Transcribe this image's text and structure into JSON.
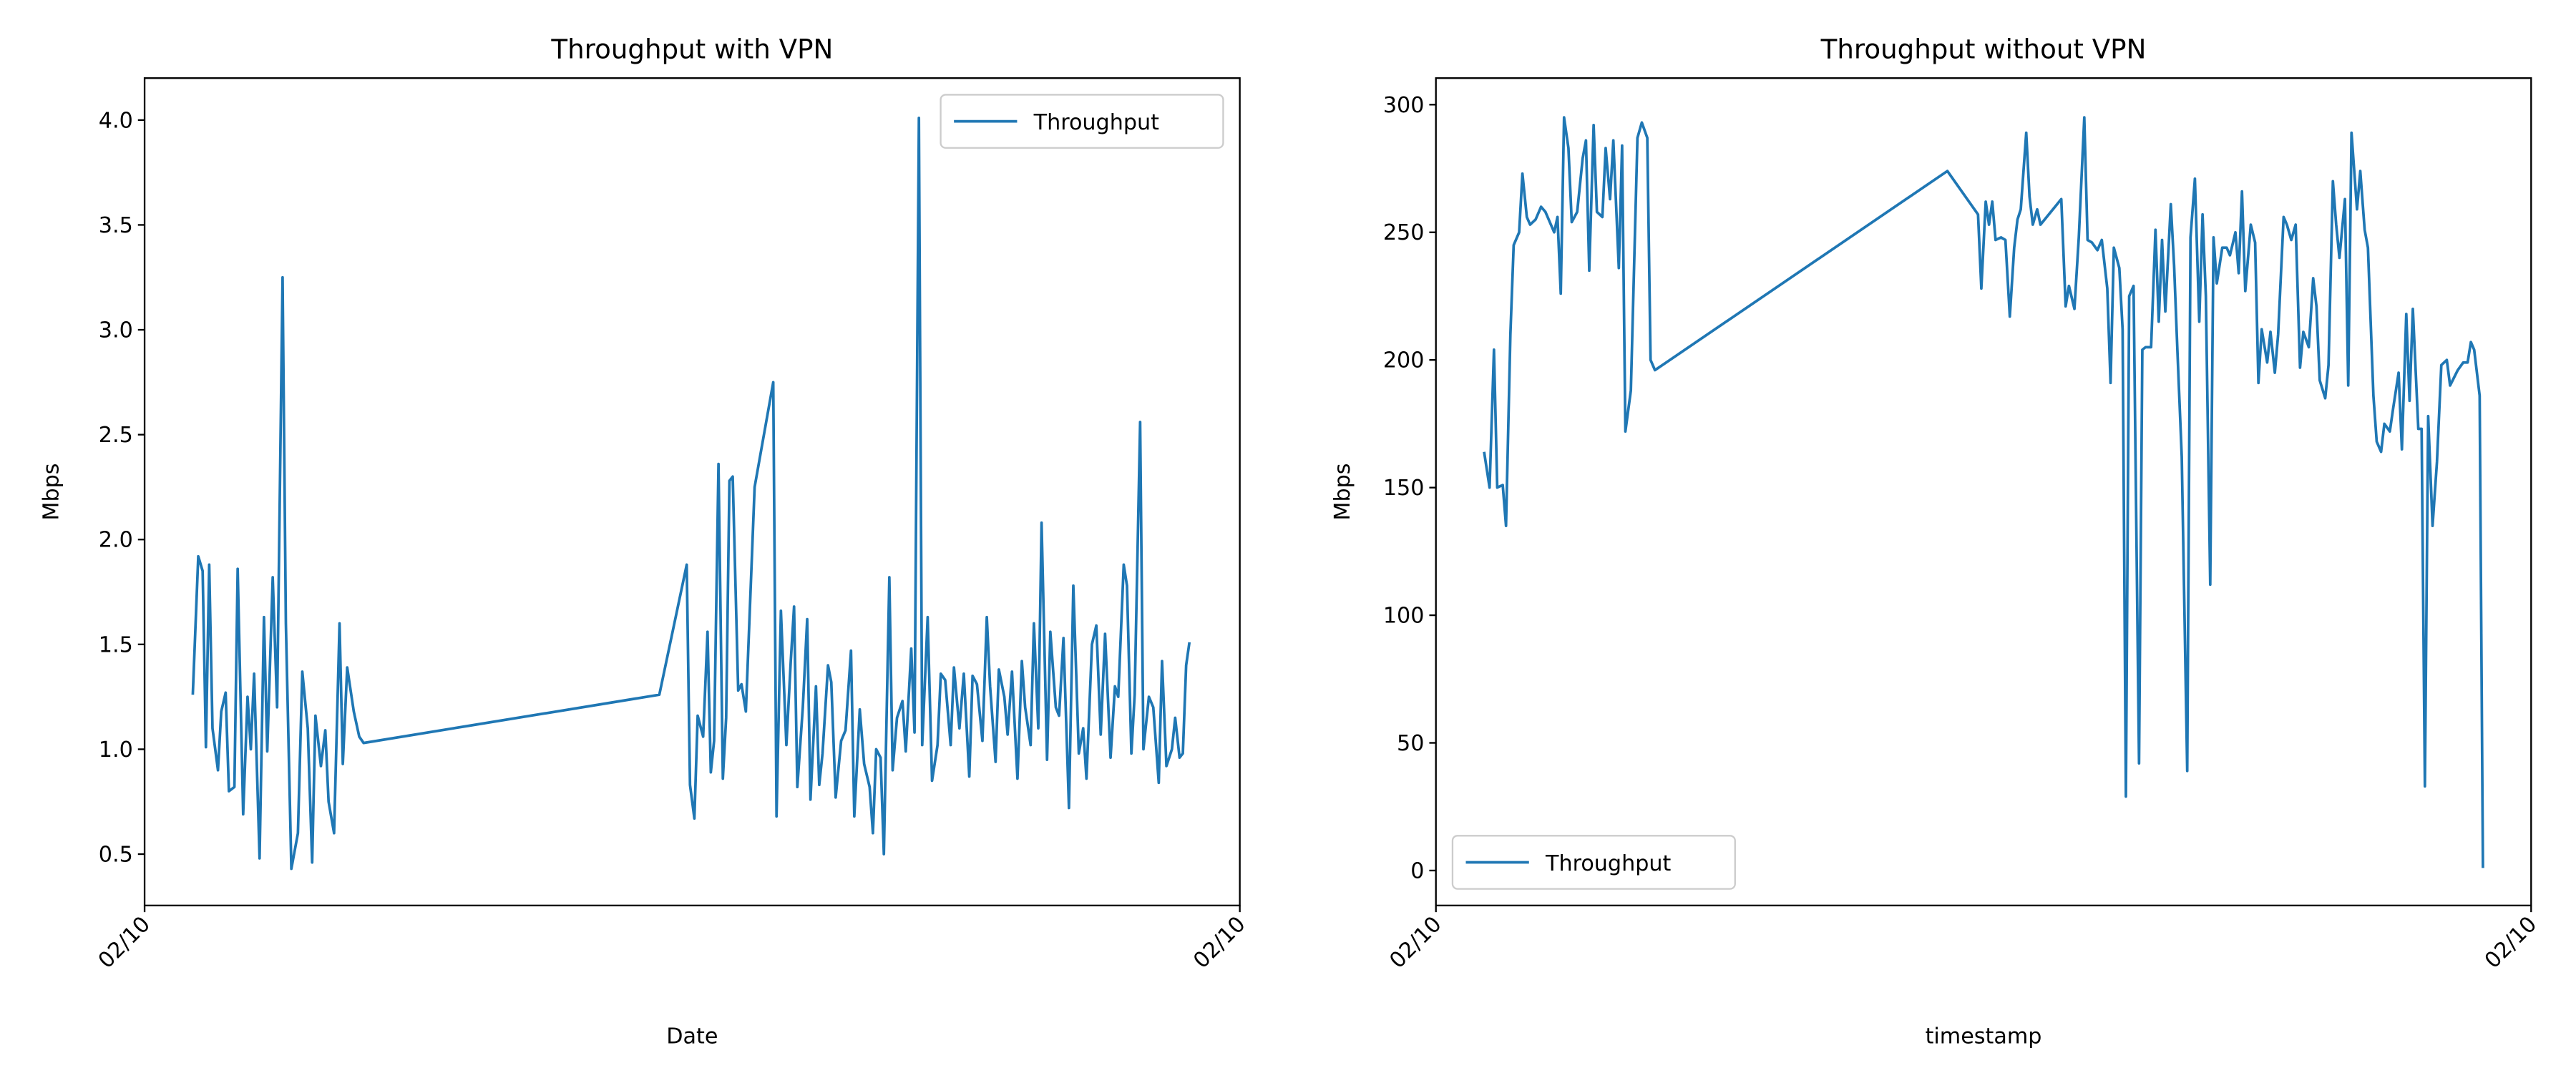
{
  "chart_data": [
    {
      "type": "line",
      "title": "Throughput with VPN",
      "xlabel": "Date",
      "ylabel": "Mbps",
      "xlim": [
        0,
        1
      ],
      "xticks": [
        {
          "value": 0,
          "label": "02/10"
        },
        {
          "value": 1,
          "label": "02/10"
        }
      ],
      "ylim": [
        0.255,
        4.2
      ],
      "yticks": [
        0.5,
        {
          "value": 1.0,
          "label": "1.0"
        },
        1.5,
        {
          "value": 2.0,
          "label": "2.0"
        },
        2.5,
        {
          "value": 3.0,
          "label": "3.0"
        },
        3.5,
        {
          "value": 4.0,
          "label": "4.0"
        }
      ],
      "legend": "upper right",
      "x": [
        0.044,
        0.049,
        0.053,
        0.056,
        0.059,
        0.062,
        0.067,
        0.07,
        0.074,
        0.077,
        0.082,
        0.085,
        0.09,
        0.094,
        0.097,
        0.1,
        0.105,
        0.109,
        0.112,
        0.117,
        0.121,
        0.126,
        0.129,
        0.134,
        0.14,
        0.144,
        0.149,
        0.153,
        0.156,
        0.161,
        0.165,
        0.168,
        0.173,
        0.178,
        0.181,
        0.185,
        0.191,
        0.196,
        0.2,
        0.47,
        0.495,
        0.498,
        0.502,
        0.505,
        0.51,
        0.514,
        0.517,
        0.52,
        0.524,
        0.528,
        0.531,
        0.534,
        0.537,
        0.542,
        0.545,
        0.549,
        0.557,
        0.574,
        0.577,
        0.581,
        0.586,
        0.59,
        0.593,
        0.596,
        0.601,
        0.605,
        0.608,
        0.613,
        0.616,
        0.619,
        0.624,
        0.627,
        0.631,
        0.636,
        0.64,
        0.645,
        0.648,
        0.653,
        0.657,
        0.662,
        0.665,
        0.668,
        0.672,
        0.675,
        0.68,
        0.683,
        0.687,
        0.692,
        0.695,
        0.7,
        0.703,
        0.707,
        0.71,
        0.715,
        0.719,
        0.724,
        0.727,
        0.731,
        0.736,
        0.739,
        0.744,
        0.748,
        0.753,
        0.756,
        0.76,
        0.765,
        0.769,
        0.772,
        0.777,
        0.78,
        0.785,
        0.788,
        0.792,
        0.797,
        0.801,
        0.804,
        0.809,
        0.812,
        0.816,
        0.819,
        0.824,
        0.827,
        0.832,
        0.835,
        0.839,
        0.844,
        0.848,
        0.853,
        0.857,
        0.86,
        0.865,
        0.869,
        0.873,
        0.877,
        0.882,
        0.886,
        0.889,
        0.894,
        0.897,
        0.901,
        0.904,
        0.909,
        0.912,
        0.917,
        0.921,
        0.926,
        0.929,
        0.933,
        0.938,
        0.941,
        0.945,
        0.948,
        0.951,
        0.954
      ],
      "series": [
        {
          "name": "Throughput",
          "color": "#1f77b4",
          "values": [
            1.26,
            1.92,
            1.85,
            1.01,
            1.88,
            1.1,
            0.9,
            1.18,
            1.27,
            0.8,
            0.82,
            1.86,
            0.69,
            1.25,
            1.0,
            1.36,
            0.48,
            1.63,
            0.99,
            1.82,
            1.2,
            3.25,
            1.6,
            0.43,
            0.6,
            1.37,
            1.1,
            0.46,
            1.16,
            0.92,
            1.09,
            0.75,
            0.6,
            1.6,
            0.93,
            1.39,
            1.18,
            1.06,
            1.03,
            1.26,
            1.88,
            0.83,
            0.67,
            1.16,
            1.06,
            1.56,
            0.89,
            1.04,
            2.36,
            0.86,
            1.15,
            2.28,
            2.3,
            1.28,
            1.31,
            1.18,
            2.25,
            2.75,
            0.68,
            1.66,
            1.02,
            1.42,
            1.68,
            0.82,
            1.2,
            1.62,
            0.76,
            1.3,
            0.83,
            0.98,
            1.4,
            1.32,
            0.77,
            1.04,
            1.09,
            1.47,
            0.68,
            1.19,
            0.93,
            0.82,
            0.6,
            1.0,
            0.96,
            0.5,
            1.82,
            0.9,
            1.15,
            1.23,
            0.99,
            1.48,
            1.08,
            4.01,
            1.02,
            1.63,
            0.85,
            1.02,
            1.36,
            1.33,
            1.02,
            1.39,
            1.1,
            1.36,
            0.87,
            1.35,
            1.31,
            1.04,
            1.63,
            1.3,
            0.94,
            1.38,
            1.25,
            1.07,
            1.37,
            0.86,
            1.42,
            1.2,
            1.02,
            1.6,
            1.1,
            2.08,
            0.95,
            1.56,
            1.2,
            1.16,
            1.53,
            0.72,
            1.78,
            0.98,
            1.1,
            0.86,
            1.5,
            1.59,
            1.07,
            1.55,
            0.96,
            1.3,
            1.25,
            1.88,
            1.78,
            0.98,
            1.26,
            2.56,
            1.0,
            1.25,
            1.2,
            0.84,
            1.42,
            0.92,
            1.0,
            1.15,
            0.96,
            0.98,
            1.4,
            1.51
          ]
        }
      ]
    },
    {
      "type": "line",
      "title": "Throughput without VPN",
      "xlabel": "timestamp",
      "ylabel": "Mbps",
      "xlim": [
        0,
        1
      ],
      "xticks": [
        {
          "value": 0,
          "label": "02/10"
        },
        {
          "value": 1,
          "label": "02/10"
        }
      ],
      "ylim": [
        -13.7,
        310.4
      ],
      "yticks": [
        0,
        50,
        100,
        150,
        200,
        250,
        300
      ],
      "legend": "lower left",
      "x": [
        0.044,
        0.049,
        0.053,
        0.056,
        0.061,
        0.064,
        0.068,
        0.071,
        0.076,
        0.079,
        0.083,
        0.086,
        0.091,
        0.096,
        0.1,
        0.105,
        0.108,
        0.111,
        0.114,
        0.117,
        0.121,
        0.124,
        0.129,
        0.134,
        0.137,
        0.14,
        0.144,
        0.147,
        0.152,
        0.155,
        0.159,
        0.162,
        0.167,
        0.17,
        0.173,
        0.178,
        0.184,
        0.188,
        0.193,
        0.196,
        0.2,
        0.467,
        0.495,
        0.498,
        0.502,
        0.505,
        0.508,
        0.511,
        0.516,
        0.52,
        0.524,
        0.528,
        0.531,
        0.534,
        0.539,
        0.542,
        0.545,
        0.549,
        0.552,
        0.571,
        0.575,
        0.578,
        0.583,
        0.587,
        0.592,
        0.595,
        0.599,
        0.604,
        0.608,
        0.613,
        0.616,
        0.619,
        0.624,
        0.627,
        0.63,
        0.633,
        0.637,
        0.642,
        0.645,
        0.648,
        0.653,
        0.657,
        0.66,
        0.663,
        0.666,
        0.671,
        0.674,
        0.677,
        0.681,
        0.686,
        0.689,
        0.693,
        0.697,
        0.7,
        0.703,
        0.707,
        0.71,
        0.713,
        0.718,
        0.722,
        0.725,
        0.73,
        0.733,
        0.736,
        0.739,
        0.744,
        0.748,
        0.751,
        0.754,
        0.759,
        0.762,
        0.766,
        0.769,
        0.774,
        0.777,
        0.781,
        0.785,
        0.789,
        0.792,
        0.797,
        0.801,
        0.804,
        0.807,
        0.812,
        0.815,
        0.819,
        0.822,
        0.825,
        0.83,
        0.833,
        0.836,
        0.841,
        0.844,
        0.848,
        0.851,
        0.856,
        0.859,
        0.863,
        0.866,
        0.871,
        0.874,
        0.879,
        0.882,
        0.886,
        0.889,
        0.892,
        0.897,
        0.9,
        0.903,
        0.906,
        0.91,
        0.914,
        0.918,
        0.923,
        0.926,
        0.933,
        0.938,
        0.942,
        0.945,
        0.948,
        0.953,
        0.956
      ],
      "series": [
        {
          "name": "Throughput",
          "color": "#1f77b4",
          "values": [
            164,
            150,
            204,
            150,
            151,
            135,
            210,
            245,
            250,
            273,
            256,
            253,
            255,
            260,
            258,
            253,
            250,
            256,
            226,
            295,
            283,
            254,
            258,
            279,
            286,
            235,
            292,
            258,
            256,
            283,
            263,
            286,
            236,
            284,
            172,
            188,
            287,
            293,
            287,
            200,
            196,
            274,
            257,
            228,
            262,
            253,
            262,
            247,
            248,
            247,
            217,
            244,
            255,
            259,
            289,
            264,
            253,
            259,
            253,
            263,
            221,
            229,
            220,
            248,
            295,
            247,
            246,
            243,
            247,
            228,
            191,
            244,
            236,
            212,
            29,
            225,
            229,
            42,
            204,
            205,
            205,
            251,
            215,
            247,
            219,
            261,
            237,
            204,
            162,
            39,
            248,
            271,
            215,
            257,
            225,
            112,
            248,
            230,
            244,
            244,
            241,
            250,
            234,
            266,
            227,
            253,
            246,
            191,
            212,
            199,
            211,
            195,
            210,
            256,
            253,
            247,
            253,
            197,
            211,
            205,
            232,
            221,
            192,
            185,
            198,
            270,
            253,
            240,
            263,
            190,
            289,
            259,
            274,
            251,
            244,
            186,
            168,
            164,
            175,
            172,
            181,
            195,
            165,
            218,
            184,
            220,
            173,
            173,
            33,
            178,
            135,
            160,
            198,
            200,
            190,
            196,
            199,
            199,
            207,
            204,
            186,
            1
          ]
        }
      ]
    }
  ]
}
